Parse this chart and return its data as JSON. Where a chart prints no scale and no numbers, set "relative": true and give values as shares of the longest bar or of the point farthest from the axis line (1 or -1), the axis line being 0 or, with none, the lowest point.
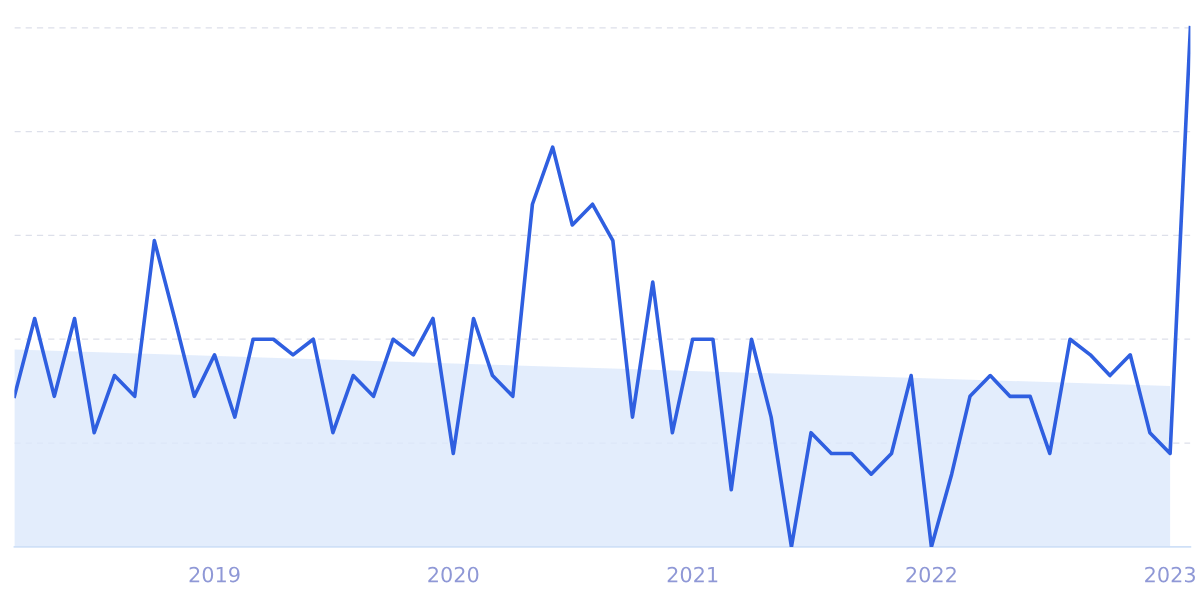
{
  "chart_data": {
    "type": "line",
    "relative": true,
    "grid": "y",
    "xlim": [
      "2018-03",
      "2023-02"
    ],
    "xticks": [
      {
        "value": "2019",
        "label": "2019"
      },
      {
        "value": "2020",
        "label": "2020"
      },
      {
        "value": "2021",
        "label": "2021"
      },
      {
        "value": "2022",
        "label": "2022"
      },
      {
        "value": "2023",
        "label": "2023"
      }
    ],
    "x": [
      "2018-03",
      "2018-04",
      "2018-05",
      "2018-06",
      "2018-07",
      "2018-08",
      "2018-09",
      "2018-10",
      "2018-11",
      "2018-12",
      "2019-01",
      "2019-02",
      "2019-03",
      "2019-04",
      "2019-05",
      "2019-06",
      "2019-07",
      "2019-08",
      "2019-09",
      "2019-10",
      "2019-11",
      "2019-12",
      "2020-01",
      "2020-02",
      "2020-03",
      "2020-04",
      "2020-05",
      "2020-06",
      "2020-07",
      "2020-08",
      "2020-09",
      "2020-10",
      "2020-11",
      "2020-12",
      "2021-01",
      "2021-02",
      "2021-03",
      "2021-04",
      "2021-05",
      "2021-06",
      "2021-07",
      "2021-08",
      "2021-09",
      "2021-10",
      "2021-11",
      "2021-12",
      "2022-01",
      "2022-02",
      "2022-03",
      "2022-04",
      "2022-05",
      "2022-06",
      "2022-07",
      "2022-08",
      "2022-09",
      "2022-10",
      "2022-11",
      "2022-12",
      "2023-01",
      "2023-02"
    ],
    "series": [
      {
        "color": "#2f5fe0",
        "values": [
          0.29,
          0.44,
          0.29,
          0.44,
          0.22,
          0.33,
          0.29,
          0.59,
          0.44,
          0.29,
          0.37,
          0.25,
          0.4,
          0.4,
          0.37,
          0.4,
          0.22,
          0.33,
          0.29,
          0.4,
          0.37,
          0.44,
          0.18,
          0.44,
          0.33,
          0.29,
          0.66,
          0.77,
          0.62,
          0.66,
          0.59,
          0.25,
          0.51,
          0.22,
          0.4,
          0.4,
          0.11,
          0.4,
          0.25,
          0,
          0.22,
          0.18,
          0.18,
          0.14,
          0.18,
          0.33,
          0,
          0.14,
          0.29,
          0.33,
          0.29,
          0.29,
          0.18,
          0.4,
          0.37,
          0.33,
          0.37,
          0.22,
          0.18,
          1
        ]
      },
      {
        "type": "area",
        "color": "#dce9fb",
        "x": [
          "2018-03",
          "2023-01"
        ],
        "values": [
          0.38,
          0.31
        ]
      }
    ]
  }
}
